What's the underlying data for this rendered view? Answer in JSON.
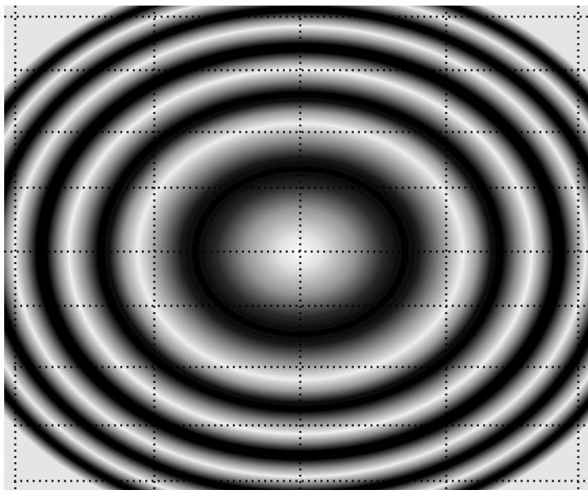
{
  "image": {
    "subject": "interference-fringe-pattern",
    "palette": {
      "background": "#ffffff",
      "dark": "#000000",
      "light": "#ffffff",
      "grid": "#000000"
    },
    "fringe_count": 8,
    "grid_lines": "dotted"
  }
}
